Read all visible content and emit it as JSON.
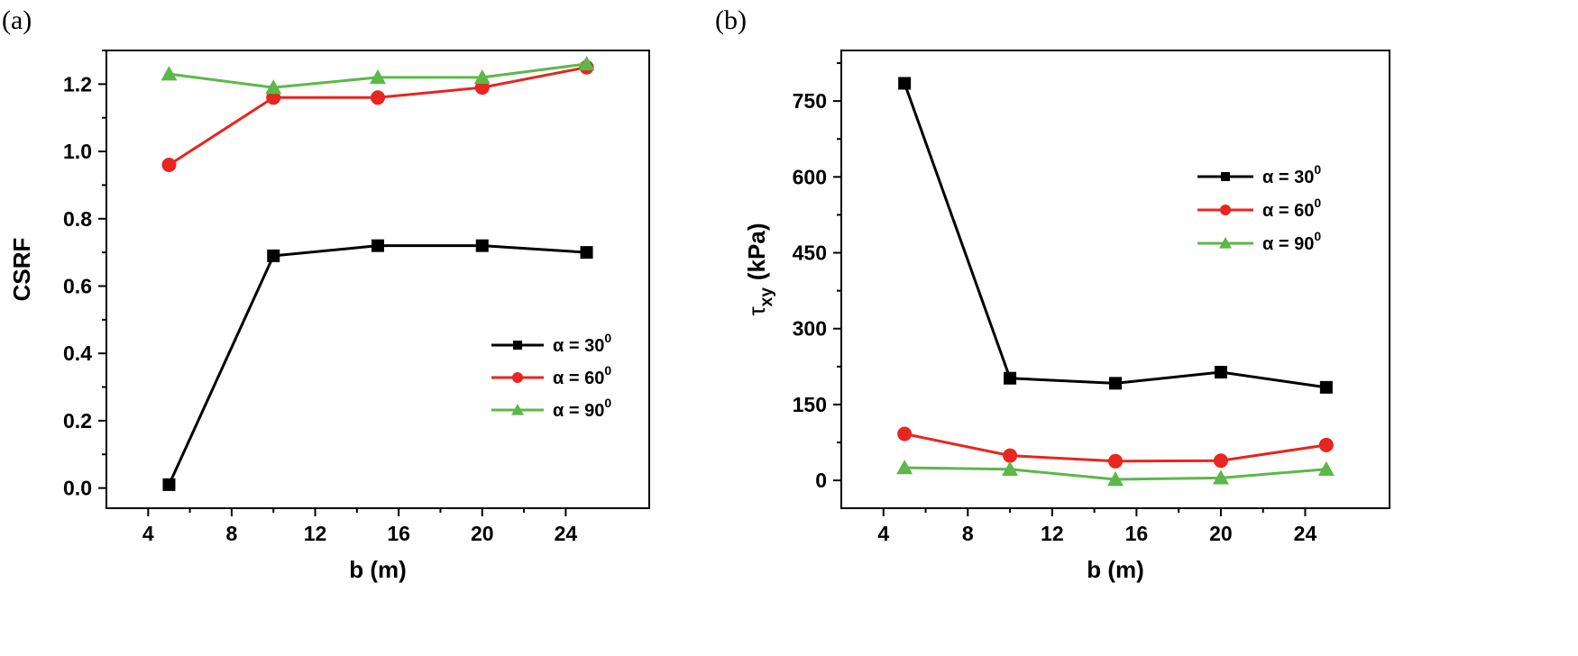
{
  "chart_data": [
    {
      "type": "line",
      "panel_label": "(a)",
      "title": "",
      "xlabel": "b (m)",
      "ylabel": "CSRF",
      "xlim": [
        2,
        28
      ],
      "ylim": [
        -0.06,
        1.3
      ],
      "xticks": [
        4,
        8,
        12,
        16,
        20,
        24
      ],
      "yticks": [
        0.0,
        0.2,
        0.4,
        0.6,
        0.8,
        1.0,
        1.2
      ],
      "ytick_labels": [
        "0.0",
        "0.2",
        "0.4",
        "0.6",
        "0.8",
        "1.0",
        "1.2"
      ],
      "grid": false,
      "legend_position": "lower-right",
      "x": [
        5,
        10,
        15,
        20,
        25
      ],
      "series": [
        {
          "name": "α = 30",
          "sup": "0",
          "marker": "square",
          "color": "#000000",
          "values": [
            0.01,
            0.69,
            0.72,
            0.72,
            0.7
          ]
        },
        {
          "name": "α = 60",
          "sup": "0",
          "marker": "circle",
          "color": "#e8251f",
          "values": [
            0.96,
            1.16,
            1.16,
            1.19,
            1.25
          ]
        },
        {
          "name": "α = 90",
          "sup": "0",
          "marker": "triangle",
          "color": "#5cb848",
          "values": [
            1.23,
            1.19,
            1.22,
            1.22,
            1.26
          ]
        }
      ]
    },
    {
      "type": "line",
      "panel_label": "(b)",
      "title": "",
      "xlabel": "b (m)",
      "ylabel_main": "τ",
      "ylabel_sub": "xy",
      "ylabel_unit": "(kPa)",
      "xlim": [
        2,
        28
      ],
      "ylim": [
        -55,
        850
      ],
      "xticks": [
        4,
        8,
        12,
        16,
        20,
        24
      ],
      "yticks": [
        0,
        150,
        300,
        450,
        600,
        750
      ],
      "ytick_labels": [
        "0",
        "150",
        "300",
        "450",
        "600",
        "750"
      ],
      "grid": false,
      "legend_position": "top-right",
      "x": [
        5,
        10,
        15,
        20,
        25
      ],
      "series": [
        {
          "name": "α = 30",
          "sup": "0",
          "marker": "square",
          "color": "#000000",
          "values": [
            785,
            202,
            192,
            214,
            184
          ]
        },
        {
          "name": "α = 60",
          "sup": "0",
          "marker": "circle",
          "color": "#e8251f",
          "values": [
            92,
            49,
            38,
            39,
            70
          ]
        },
        {
          "name": "α = 90",
          "sup": "0",
          "marker": "triangle",
          "color": "#5cb848",
          "values": [
            25,
            22,
            2,
            5,
            22
          ]
        }
      ]
    }
  ]
}
